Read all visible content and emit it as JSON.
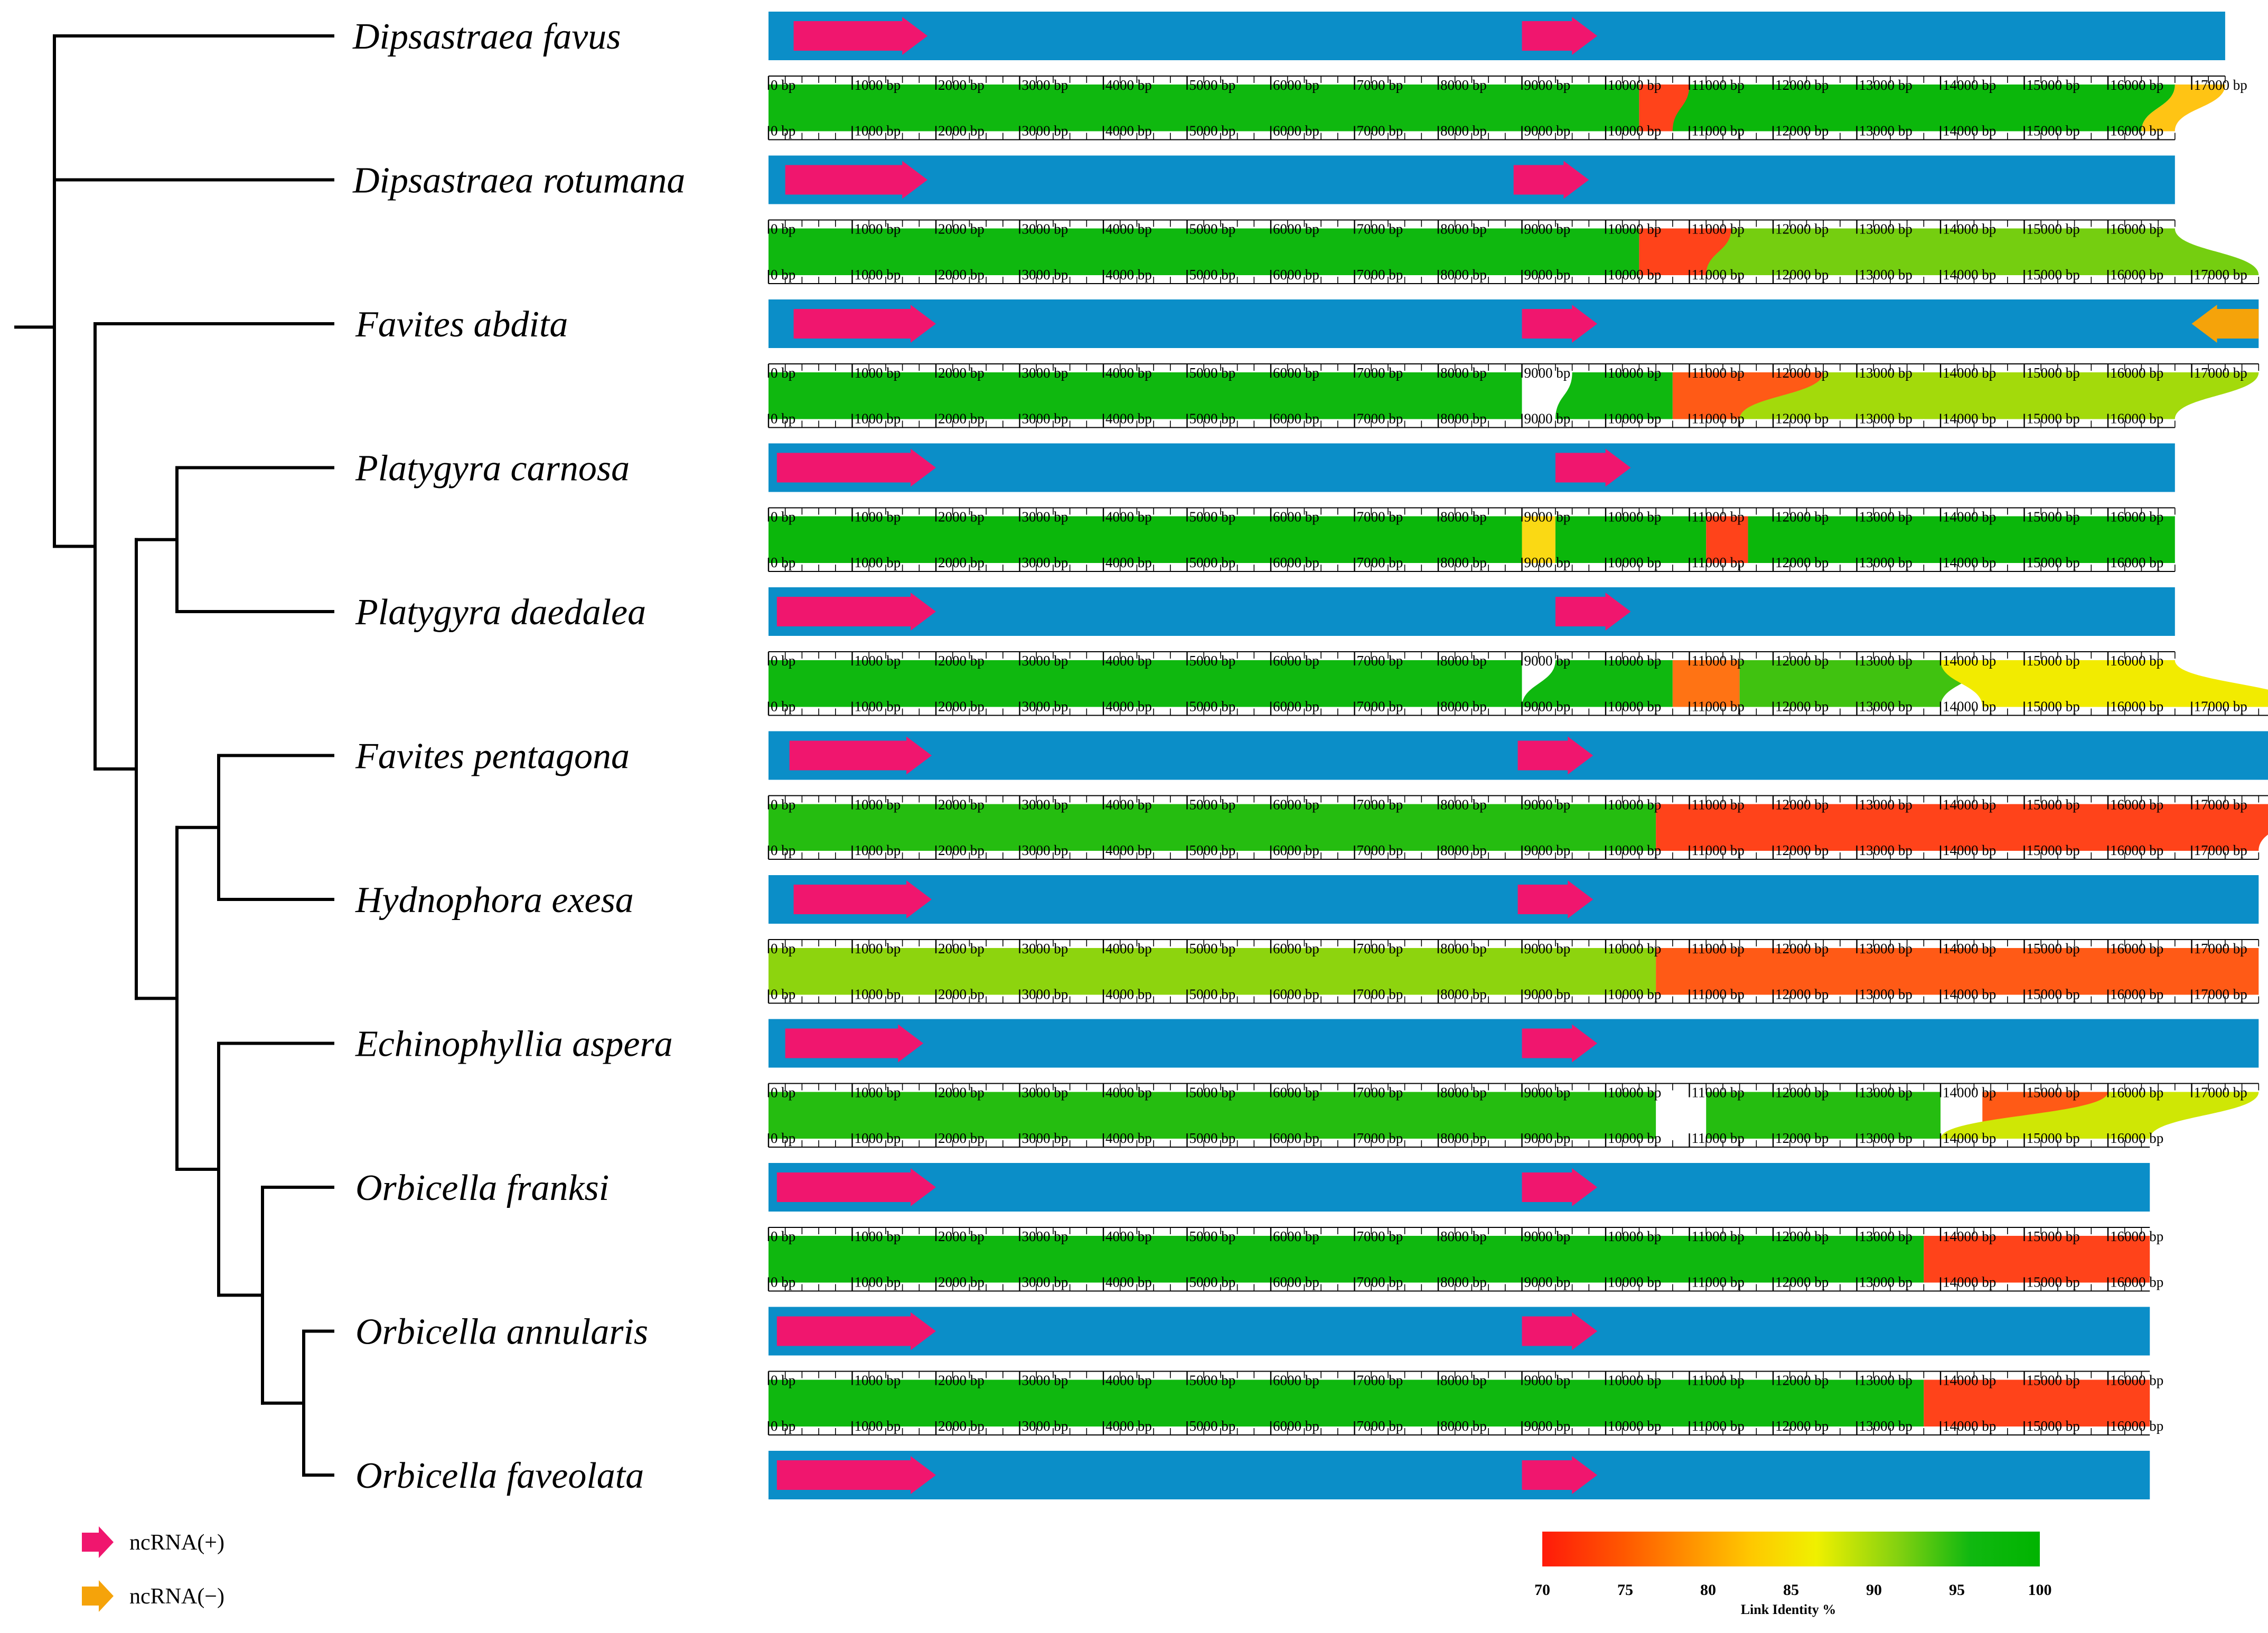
{
  "colors": {
    "track": "#0b8ec8",
    "ncrna_plus": "#f0166e",
    "ncrna_minus": "#f5a30a",
    "link_high": "#00b400",
    "link_low": "#ff1a1a",
    "tree": "#000000"
  },
  "species": [
    {
      "name": "Dipsastraea favus",
      "length_bp": 17400
    },
    {
      "name": "Dipsastraea rotumana",
      "length_bp": 16800
    },
    {
      "name": "Favites abdita",
      "length_bp": 17800
    },
    {
      "name": "Platygyra carnosa",
      "length_bp": 16800
    },
    {
      "name": "Platygyra daedalea",
      "length_bp": 16800
    },
    {
      "name": "Favites pentagona",
      "length_bp": 18300
    },
    {
      "name": "Hydnophora exesa",
      "length_bp": 17800
    },
    {
      "name": "Echinophyllia aspera",
      "length_bp": 17800
    },
    {
      "name": "Orbicella franksi",
      "length_bp": 16500
    },
    {
      "name": "Orbicella annularis",
      "length_bp": 16500
    },
    {
      "name": "Orbicella faveolata",
      "length_bp": 16500
    }
  ],
  "features": [
    {
      "track": 0,
      "start": 300,
      "end": 1900,
      "strand": "+"
    },
    {
      "track": 0,
      "start": 9000,
      "end": 9900,
      "strand": "+"
    },
    {
      "track": 1,
      "start": 200,
      "end": 1900,
      "strand": "+"
    },
    {
      "track": 1,
      "start": 8900,
      "end": 9800,
      "strand": "+"
    },
    {
      "track": 2,
      "start": 300,
      "end": 2000,
      "strand": "+"
    },
    {
      "track": 2,
      "start": 9000,
      "end": 9900,
      "strand": "+"
    },
    {
      "track": 2,
      "start": 17000,
      "end": 17800,
      "strand": "-"
    },
    {
      "track": 3,
      "start": 100,
      "end": 2000,
      "strand": "+"
    },
    {
      "track": 3,
      "start": 9400,
      "end": 10300,
      "strand": "+"
    },
    {
      "track": 4,
      "start": 100,
      "end": 2000,
      "strand": "+"
    },
    {
      "track": 4,
      "start": 9400,
      "end": 10300,
      "strand": "+"
    },
    {
      "track": 5,
      "start": 250,
      "end": 1950,
      "strand": "+"
    },
    {
      "track": 5,
      "start": 8950,
      "end": 9850,
      "strand": "+"
    },
    {
      "track": 6,
      "start": 300,
      "end": 1950,
      "strand": "+"
    },
    {
      "track": 6,
      "start": 8950,
      "end": 9850,
      "strand": "+"
    },
    {
      "track": 7,
      "start": 200,
      "end": 1850,
      "strand": "+"
    },
    {
      "track": 7,
      "start": 9000,
      "end": 9900,
      "strand": "+"
    },
    {
      "track": 8,
      "start": 100,
      "end": 2000,
      "strand": "+"
    },
    {
      "track": 8,
      "start": 9000,
      "end": 9900,
      "strand": "+"
    },
    {
      "track": 9,
      "start": 100,
      "end": 2000,
      "strand": "+"
    },
    {
      "track": 9,
      "start": 9000,
      "end": 9900,
      "strand": "+"
    },
    {
      "track": 10,
      "start": 100,
      "end": 2000,
      "strand": "+"
    },
    {
      "track": 10,
      "start": 9000,
      "end": 9900,
      "strand": "+"
    }
  ],
  "links": [
    {
      "between": [
        0,
        1
      ],
      "identity": 96,
      "from": [
        0,
        10400
      ],
      "to": [
        0,
        10400
      ]
    },
    {
      "between": [
        0,
        1
      ],
      "identity": 72,
      "from": [
        10400,
        11000
      ],
      "to": [
        10400,
        11000
      ]
    },
    {
      "between": [
        0,
        1
      ],
      "identity": 97,
      "from": [
        11000,
        16800
      ],
      "to": [
        10800,
        16400
      ]
    },
    {
      "between": [
        0,
        1
      ],
      "identity": 82,
      "from": [
        16800,
        17400
      ],
      "to": [
        16400,
        16800
      ]
    },
    {
      "between": [
        1,
        2
      ],
      "identity": 96,
      "from": [
        0,
        10400
      ],
      "to": [
        0,
        10400
      ]
    },
    {
      "between": [
        1,
        2
      ],
      "identity": 72,
      "from": [
        10400,
        11500
      ],
      "to": [
        10400,
        11500
      ]
    },
    {
      "between": [
        1,
        2
      ],
      "identity": 92,
      "from": [
        11500,
        16800
      ],
      "to": [
        11200,
        17800
      ]
    },
    {
      "between": [
        2,
        3
      ],
      "identity": 96,
      "from": [
        0,
        9000
      ],
      "to": [
        0,
        9000
      ]
    },
    {
      "between": [
        2,
        3
      ],
      "identity": 96,
      "from": [
        9600,
        10800
      ],
      "to": [
        9400,
        10800
      ]
    },
    {
      "between": [
        2,
        3
      ],
      "identity": 74,
      "from": [
        10800,
        12600
      ],
      "to": [
        10800,
        12600
      ]
    },
    {
      "between": [
        2,
        3
      ],
      "identity": 90,
      "from": [
        12600,
        17800
      ],
      "to": [
        11600,
        16800
      ]
    },
    {
      "between": [
        3,
        4
      ],
      "identity": 97,
      "from": [
        0,
        9000
      ],
      "to": [
        0,
        9000
      ]
    },
    {
      "between": [
        3,
        4
      ],
      "identity": 84,
      "from": [
        9000,
        9400
      ],
      "to": [
        9000,
        9400
      ]
    },
    {
      "between": [
        3,
        4
      ],
      "identity": 97,
      "from": [
        9400,
        11200
      ],
      "to": [
        9400,
        11200
      ]
    },
    {
      "between": [
        3,
        4
      ],
      "identity": 72,
      "from": [
        11200,
        11700
      ],
      "to": [
        11200,
        11700
      ]
    },
    {
      "between": [
        3,
        4
      ],
      "identity": 97,
      "from": [
        11700,
        16800
      ],
      "to": [
        11700,
        16800
      ]
    },
    {
      "between": [
        4,
        5
      ],
      "identity": 96,
      "from": [
        0,
        9000
      ],
      "to": [
        0,
        9000
      ]
    },
    {
      "between": [
        4,
        5
      ],
      "identity": 96,
      "from": [
        9400,
        10800
      ],
      "to": [
        9000,
        10800
      ]
    },
    {
      "between": [
        4,
        5
      ],
      "identity": 76,
      "from": [
        10800,
        11600
      ],
      "to": [
        10800,
        11600
      ]
    },
    {
      "between": [
        4,
        5
      ],
      "identity": 94,
      "from": [
        11600,
        14500
      ],
      "to": [
        11600,
        14000
      ]
    },
    {
      "between": [
        4,
        5
      ],
      "identity": 86,
      "from": [
        14000,
        16800
      ],
      "to": [
        14500,
        18300
      ]
    },
    {
      "between": [
        5,
        6
      ],
      "identity": 95,
      "from": [
        0,
        10600
      ],
      "to": [
        0,
        10600
      ]
    },
    {
      "between": [
        5,
        6
      ],
      "identity": 72,
      "from": [
        10600,
        18300
      ],
      "to": [
        10600,
        17800
      ]
    },
    {
      "between": [
        6,
        7
      ],
      "identity": 91,
      "from": [
        0,
        10600
      ],
      "to": [
        0,
        10600
      ]
    },
    {
      "between": [
        6,
        7
      ],
      "identity": 74,
      "from": [
        10600,
        17800
      ],
      "to": [
        10600,
        17800
      ]
    },
    {
      "between": [
        7,
        8
      ],
      "identity": 95,
      "from": [
        0,
        10600
      ],
      "to": [
        0,
        10600
      ]
    },
    {
      "between": [
        7,
        8
      ],
      "identity": 95,
      "from": [
        11200,
        14000
      ],
      "to": [
        11200,
        14000
      ]
    },
    {
      "between": [
        7,
        8
      ],
      "identity": 74,
      "from": [
        14500,
        16000
      ],
      "to": [
        14500,
        16000
      ]
    },
    {
      "between": [
        7,
        8
      ],
      "identity": 88,
      "from": [
        16000,
        17800
      ],
      "to": [
        14000,
        16500
      ]
    },
    {
      "between": [
        8,
        9
      ],
      "identity": 96,
      "from": [
        0,
        13800
      ],
      "to": [
        0,
        13800
      ]
    },
    {
      "between": [
        8,
        9
      ],
      "identity": 72,
      "from": [
        13800,
        16500
      ],
      "to": [
        13800,
        16500
      ]
    },
    {
      "between": [
        9,
        10
      ],
      "identity": 96,
      "from": [
        0,
        13800
      ],
      "to": [
        0,
        13800
      ]
    },
    {
      "between": [
        9,
        10
      ],
      "identity": 72,
      "from": [
        13800,
        16500
      ],
      "to": [
        13800,
        16500
      ]
    }
  ],
  "legend": [
    {
      "label": "ncRNA(+)",
      "strand": "+"
    },
    {
      "label": "ncRNA(−)",
      "strand": "-"
    }
  ],
  "scale": {
    "title": "Link Identity %",
    "min": 70,
    "max": 100,
    "ticks": [
      "70",
      "75",
      "80",
      "85",
      "90",
      "95",
      "100"
    ]
  },
  "axis": {
    "unit": "bp",
    "major_step": 1000,
    "minor_step": 200,
    "first_label": "0 bp"
  },
  "tree": {
    "root": [
      [
        "Dipsastraea favus",
        "Dipsastraea rotumana"
      ],
      [
        "Favites abdita",
        [
          [
            "Platygyra carnosa",
            "Platygyra daedalea"
          ],
          [
            [
              "Favites pentagona",
              "Hydnophora exesa"
            ],
            [
              "Echinophyllia aspera",
              [
                "Orbicella franksi",
                [
                  "Orbicella annularis",
                  "Orbicella faveolata"
                ]
              ]
            ]
          ]
        ]
      ]
    ]
  }
}
